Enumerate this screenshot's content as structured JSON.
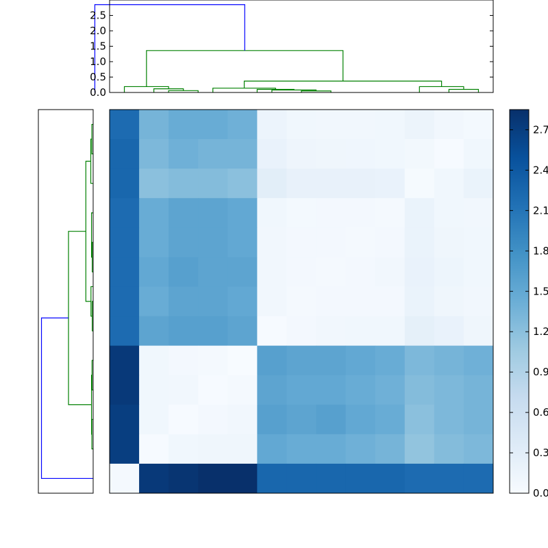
{
  "chart_data": [
    {
      "type": "dendrogram",
      "orientation": "top",
      "ylim": [
        0,
        3.0
      ],
      "yticks": [
        "0.0",
        "0.5",
        "1.0",
        "1.5",
        "2.0",
        "2.5"
      ],
      "leaves": 13,
      "links": [
        {
          "x": [
            1.5,
            2.5
          ],
          "height": 0.06,
          "color": "#008000"
        },
        {
          "x": [
            1.0,
            2.0
          ],
          "height": 0.12,
          "color": "#008000"
        },
        {
          "x": [
            0.0,
            1.5
          ],
          "height": 0.19,
          "color": "#008000"
        },
        {
          "x": [
            6.0,
            7.0
          ],
          "height": 0.05,
          "color": "#008000"
        },
        {
          "x": [
            5.0,
            6.5
          ],
          "height": 0.08,
          "color": "#008000"
        },
        {
          "x": [
            4.5,
            5.75
          ],
          "height": 0.1,
          "color": "#008000"
        },
        {
          "x": [
            3.0,
            5.125
          ],
          "height": 0.14,
          "color": "#008000"
        },
        {
          "x": [
            11.0,
            12.0
          ],
          "height": 0.1,
          "color": "#008000"
        },
        {
          "x": [
            10.0,
            11.5
          ],
          "height": 0.19,
          "color": "#008000"
        },
        {
          "x": [
            4.0625,
            10.75
          ],
          "height": 0.37,
          "color": "#008000"
        },
        {
          "x": [
            0.75,
            7.41
          ],
          "height": 1.36,
          "color": "#008000"
        },
        {
          "x": [
            -1.0,
            4.08
          ],
          "height": 2.85,
          "color": "#0000ff"
        }
      ]
    },
    {
      "type": "dendrogram",
      "orientation": "left",
      "leaves": 13,
      "links": [
        {
          "y": [
            0,
            1
          ],
          "height": 0.07,
          "color": "#008000"
        },
        {
          "y": [
            0.5,
            2
          ],
          "height": 0.13,
          "color": "#008000"
        },
        {
          "y": [
            4,
            5
          ],
          "height": 0.05,
          "color": "#008000"
        },
        {
          "y": [
            3,
            4.5
          ],
          "height": 0.09,
          "color": "#008000"
        },
        {
          "y": [
            6,
            7
          ],
          "height": 0.05,
          "color": "#008000"
        },
        {
          "y": [
            5.5,
            6.5
          ],
          "height": 0.12,
          "color": "#008000"
        },
        {
          "y": [
            1.25,
            6
          ],
          "height": 0.4,
          "color": "#008000"
        },
        {
          "y": [
            8,
            9
          ],
          "height": 0.06,
          "color": "#008000"
        },
        {
          "y": [
            10,
            11
          ],
          "height": 0.07,
          "color": "#008000"
        },
        {
          "y": [
            8.5,
            10.5
          ],
          "height": 0.09,
          "color": "#008000"
        },
        {
          "y": [
            3.625,
            9.5
          ],
          "height": 1.35,
          "color": "#008000"
        },
        {
          "y": [
            6.56,
            12
          ],
          "height": 2.83,
          "color": "#0000ff"
        }
      ]
    },
    {
      "type": "heatmap",
      "rows": 13,
      "cols": 13,
      "values": [
        [
          2.2,
          1.35,
          1.45,
          1.45,
          1.4,
          0.15,
          0.1,
          0.08,
          0.08,
          0.1,
          0.16,
          0.08,
          0.05
        ],
        [
          2.25,
          1.3,
          1.4,
          1.35,
          1.35,
          0.2,
          0.13,
          0.12,
          0.11,
          0.1,
          0.07,
          0.02,
          0.1
        ],
        [
          2.25,
          1.2,
          1.25,
          1.25,
          1.2,
          0.3,
          0.22,
          0.22,
          0.22,
          0.2,
          0.03,
          0.1,
          0.18
        ],
        [
          2.2,
          1.45,
          1.55,
          1.55,
          1.5,
          0.1,
          0.05,
          0.06,
          0.06,
          0.04,
          0.18,
          0.1,
          0.08
        ],
        [
          2.2,
          1.45,
          1.55,
          1.55,
          1.5,
          0.08,
          0.06,
          0.06,
          0.04,
          0.06,
          0.18,
          0.12,
          0.1
        ],
        [
          2.2,
          1.5,
          1.6,
          1.55,
          1.55,
          0.08,
          0.06,
          0.04,
          0.06,
          0.08,
          0.2,
          0.14,
          0.1
        ],
        [
          2.2,
          1.45,
          1.55,
          1.55,
          1.5,
          0.08,
          0.04,
          0.06,
          0.06,
          0.06,
          0.18,
          0.12,
          0.09
        ],
        [
          2.2,
          1.55,
          1.6,
          1.6,
          1.55,
          0.02,
          0.06,
          0.08,
          0.1,
          0.1,
          0.25,
          0.2,
          0.12
        ],
        [
          2.75,
          0.1,
          0.06,
          0.04,
          0.0,
          1.6,
          1.55,
          1.55,
          1.5,
          1.45,
          1.3,
          1.35,
          1.4
        ],
        [
          2.75,
          0.1,
          0.08,
          0.02,
          0.04,
          1.55,
          1.5,
          1.5,
          1.45,
          1.4,
          1.25,
          1.3,
          1.35
        ],
        [
          2.7,
          0.1,
          0.02,
          0.06,
          0.08,
          1.6,
          1.55,
          1.6,
          1.5,
          1.45,
          1.2,
          1.3,
          1.35
        ],
        [
          2.7,
          0.02,
          0.1,
          0.12,
          0.12,
          1.5,
          1.45,
          1.45,
          1.4,
          1.35,
          1.15,
          1.25,
          1.3
        ],
        [
          0.04,
          2.75,
          2.8,
          2.85,
          2.85,
          2.25,
          2.25,
          2.25,
          2.25,
          2.25,
          2.2,
          2.2,
          2.2
        ]
      ],
      "vmin": 0.0,
      "vmax": 2.85,
      "colormap": "Blues",
      "colorbar_ticks": [
        "0.0",
        "0.3",
        "0.6",
        "0.9",
        "1.2",
        "1.5",
        "1.8",
        "2.1",
        "2.4",
        "2.7"
      ]
    }
  ]
}
